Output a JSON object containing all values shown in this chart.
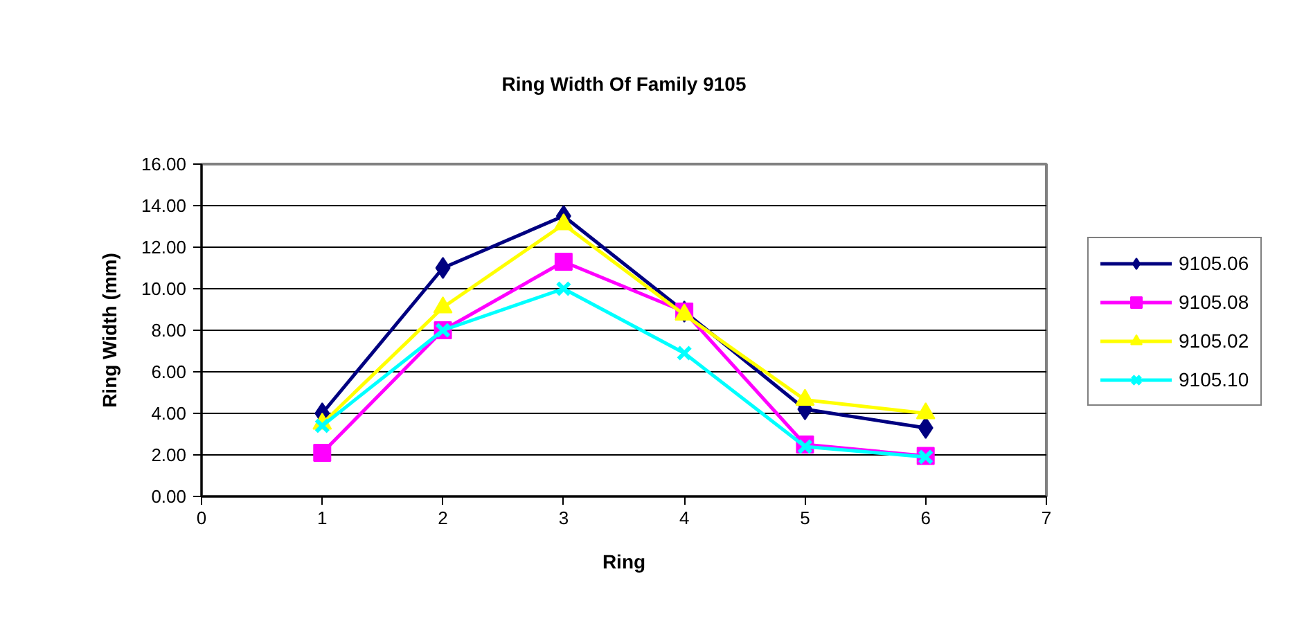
{
  "chart_data": {
    "type": "line",
    "title": "Ring Width Of Family 9105",
    "xlabel": "Ring",
    "ylabel": "Ring Width (mm)",
    "x": [
      1,
      2,
      3,
      4,
      5,
      6
    ],
    "series": [
      {
        "name": "9105.06",
        "color": "#000080",
        "marker": "diamond",
        "values": [
          4.0,
          11.0,
          13.5,
          8.9,
          4.2,
          3.3
        ]
      },
      {
        "name": "9105.08",
        "color": "#ff00ff",
        "marker": "square",
        "values": [
          2.1,
          8.0,
          11.3,
          8.9,
          2.5,
          1.95
        ]
      },
      {
        "name": "9105.02",
        "color": "#ffff00",
        "marker": "triangle",
        "values": [
          3.5,
          9.1,
          13.1,
          8.75,
          4.65,
          4.0
        ]
      },
      {
        "name": "9105.10",
        "color": "#00ffff",
        "marker": "cross",
        "values": [
          3.4,
          8.0,
          10.0,
          6.9,
          2.4,
          1.9
        ]
      }
    ],
    "xlim": [
      0,
      7
    ],
    "xticks": [
      0,
      1,
      2,
      3,
      4,
      5,
      6,
      7
    ],
    "ylim": [
      0,
      16
    ],
    "yticks": [
      {
        "value": 0,
        "label": "0.00"
      },
      {
        "value": 2,
        "label": "2.00"
      },
      {
        "value": 4,
        "label": "4.00"
      },
      {
        "value": 6,
        "label": "6.00"
      },
      {
        "value": 8,
        "label": "8.00"
      },
      {
        "value": 10,
        "label": "10.00"
      },
      {
        "value": 12,
        "label": "12.00"
      },
      {
        "value": 14,
        "label": "14.00"
      },
      {
        "value": 16,
        "label": "16.00"
      }
    ],
    "grid": "y",
    "legend": "right",
    "line_style": "solid"
  }
}
